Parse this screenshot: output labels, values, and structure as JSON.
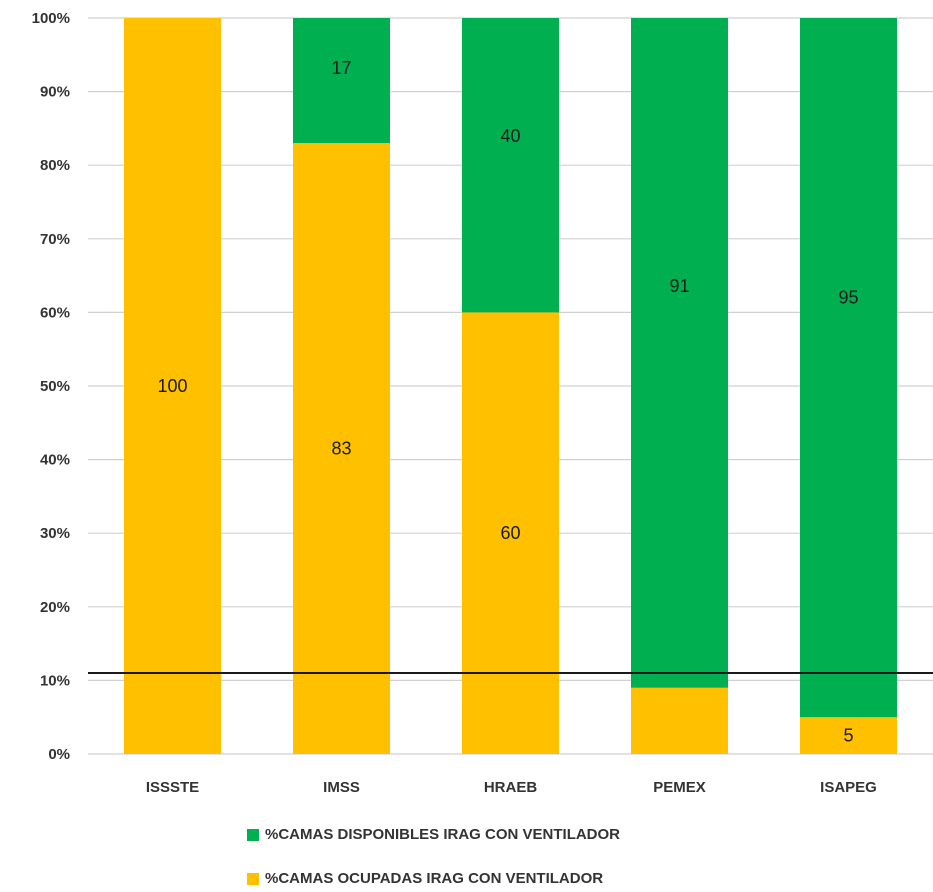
{
  "chart_data": {
    "type": "bar",
    "stacked": true,
    "categories": [
      "ISSSTE",
      "IMSS",
      "HRAEB",
      "PEMEX",
      "ISAPEG"
    ],
    "series": [
      {
        "name": "%CAMAS OCUPADAS IRAG CON VENTILADOR",
        "values": [
          100,
          83,
          60,
          9,
          5
        ],
        "labels": [
          "100",
          "83",
          "60",
          "",
          "5"
        ],
        "color": "#FFC000"
      },
      {
        "name": "%CAMAS DISPONIBLES IRAG  CON VENTILADOR",
        "values": [
          0,
          17,
          40,
          91,
          95
        ],
        "labels": [
          "",
          "17",
          "40",
          "91",
          "95"
        ],
        "color": "#00B050"
      }
    ],
    "yticks": [
      "0%",
      "10%",
      "20%",
      "30%",
      "40%",
      "50%",
      "60%",
      "70%",
      "80%",
      "90%",
      "100%"
    ],
    "ylim": [
      0,
      100
    ],
    "reference_line": 11,
    "grid": true,
    "legend_position": "bottom"
  }
}
